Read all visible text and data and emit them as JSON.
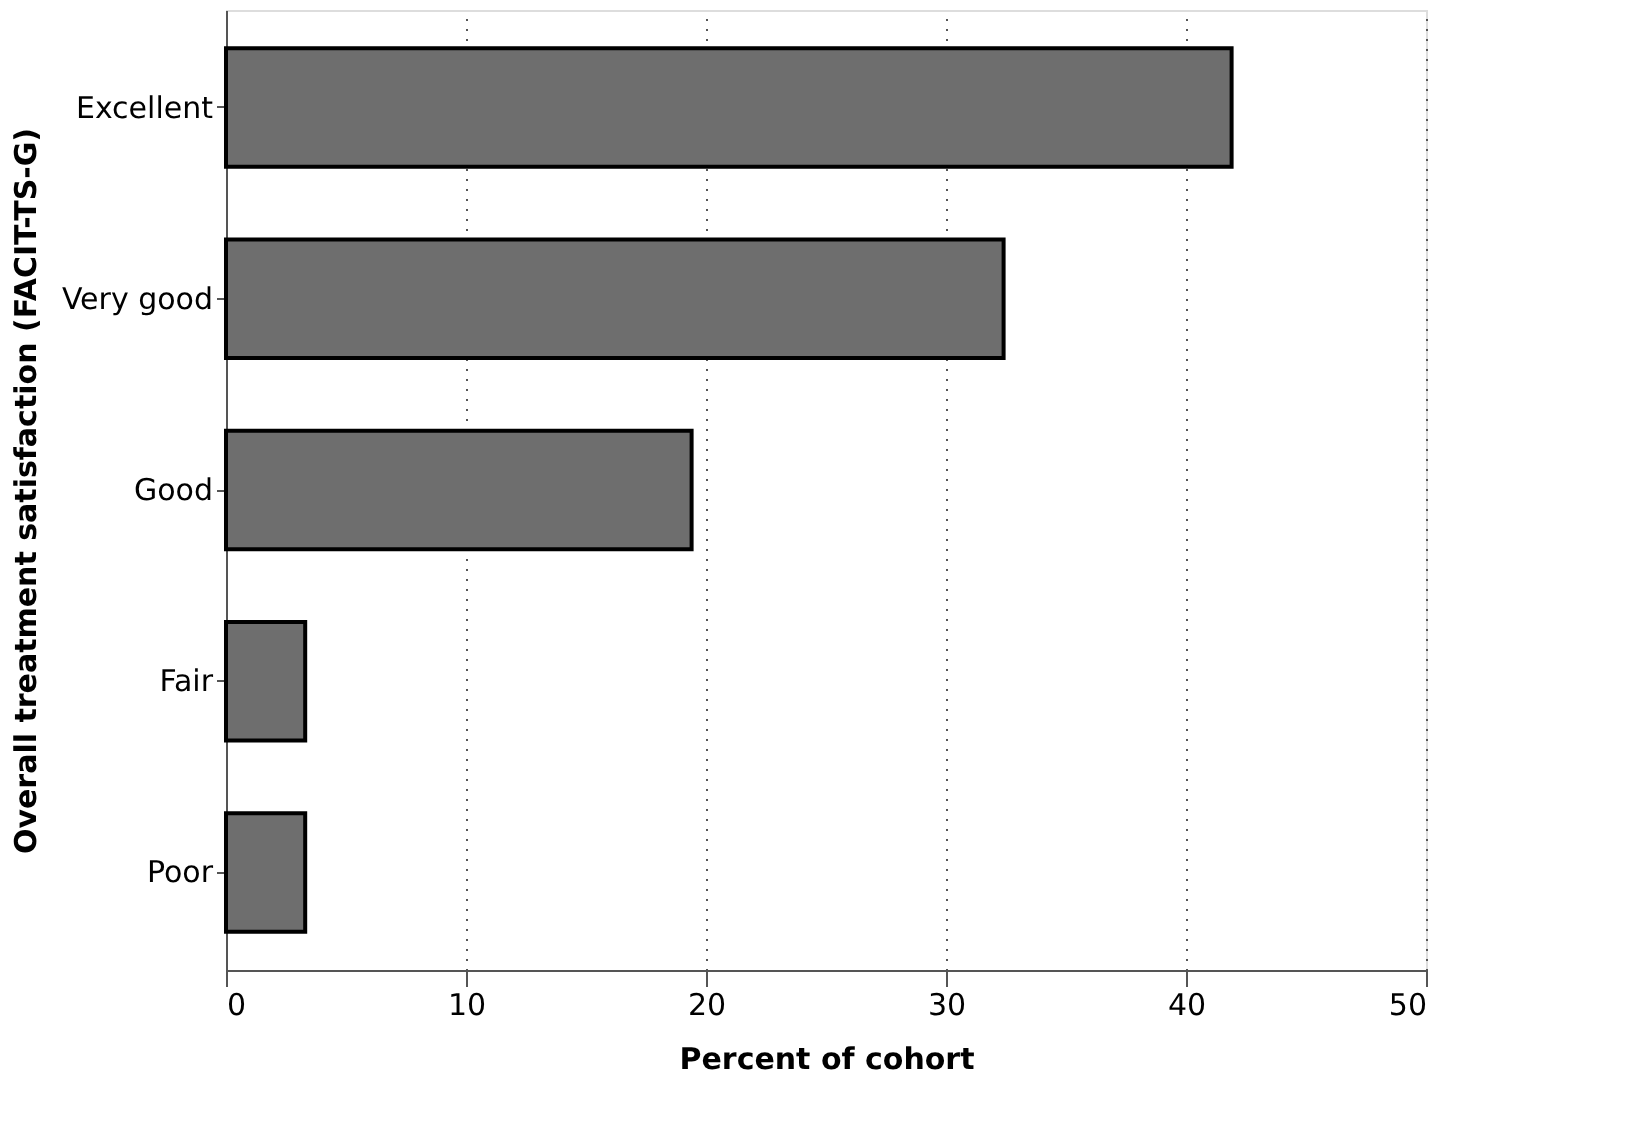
{
  "chart_data": {
    "type": "bar",
    "orientation": "horizontal",
    "xlabel": "Percent of cohort",
    "ylabel": "Overall treatment satisfaction (FACIT-TS-G)",
    "categories": [
      "Excellent",
      "Very good",
      "Good",
      "Fair",
      "Poor"
    ],
    "values": [
      41.9,
      32.4,
      19.4,
      3.3,
      3.3
    ],
    "color": "#6e6e6e",
    "xlim": [
      0,
      50
    ],
    "xticks": [
      0,
      10,
      20,
      30,
      40,
      50
    ],
    "grid": "x"
  }
}
